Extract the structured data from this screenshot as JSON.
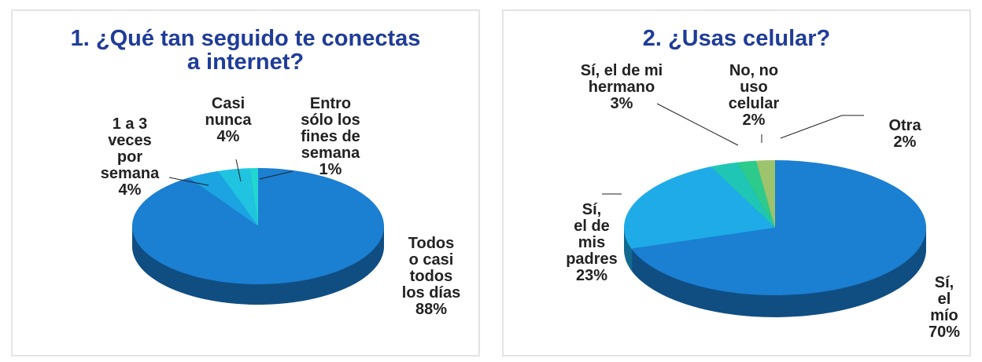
{
  "chart_data": [
    {
      "type": "pie",
      "title": "1. ¿Qué tan seguido te conectas\na internet?",
      "categories": [
        "Todos\no casi\ntodos\nlos días",
        "1 a 3\nveces\npor\nsemana",
        "Casi\nnunca",
        "Entro\nsólo los\nfines de\nsemana"
      ],
      "values": [
        88,
        4,
        4,
        1
      ],
      "value_labels": [
        "88%",
        "4%",
        "4%",
        "1%"
      ],
      "colors": [
        "#1b7fd2",
        "#1ca4e2",
        "#20c4e0",
        "#22d6d2"
      ]
    },
    {
      "type": "pie",
      "title": "2. ¿Usas celular?",
      "categories": [
        "Sí,\nel mío",
        "Sí,\nel de\nmis\npadres",
        "Sí, el de mi\nhermano",
        "No, no\nuso\ncelular",
        "Otra"
      ],
      "values": [
        70,
        23,
        3,
        2,
        2
      ],
      "value_labels": [
        "70%",
        "23%",
        "3%",
        "2%",
        "2%"
      ],
      "colors": [
        "#1b7fd2",
        "#1eabe8",
        "#1fc6b6",
        "#2ccb8c",
        "#9dc46c"
      ]
    }
  ]
}
